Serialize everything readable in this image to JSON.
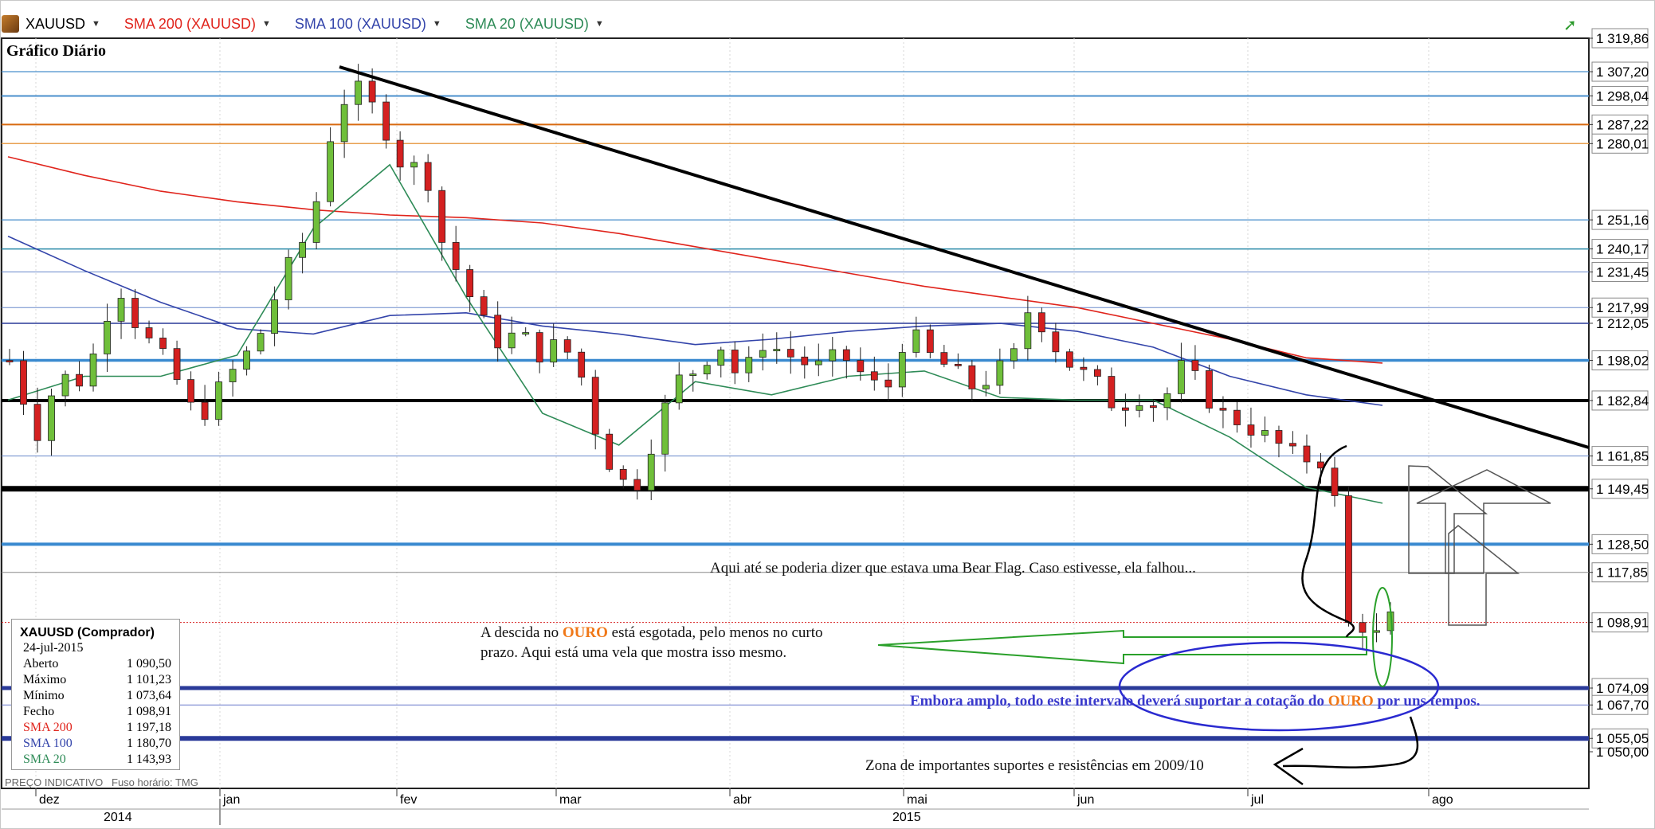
{
  "toolbar": {
    "symbol": "XAUUSD",
    "sma200_label": "SMA 200 (XAUUSD)",
    "sma100_label": "SMA 100 (XAUUSD)",
    "sma20_label": "SMA 20 (XAUUSD)"
  },
  "chart_title": "Gráfico Diário",
  "footer": {
    "left_note": "PREÇO INDICATIVO",
    "timezone_note": "Fuso horário: TMG"
  },
  "ohlc_panel": {
    "title": "XAUUSD (Comprador)",
    "date": "24-jul-2015",
    "rows": [
      {
        "label": "Aberto",
        "value": "1 090,50"
      },
      {
        "label": "Máximo",
        "value": "1 101,23"
      },
      {
        "label": "Mínimo",
        "value": "1 073,64"
      },
      {
        "label": "Fecho",
        "value": "1 098,91"
      },
      {
        "label": "SMA 200",
        "value": "1 197,18"
      },
      {
        "label": "SMA 100",
        "value": "1 180,70"
      },
      {
        "label": "SMA 20",
        "value": "1 143,93"
      }
    ]
  },
  "annotations": {
    "bear_flag": "Aqui até se poderia dizer que estava uma Bear Flag. Caso estivesse, ela falhou...",
    "descida_1": "A descida no ",
    "descida_ouro": "OURO",
    "descida_2": " está esgotada, pelo menos no curto",
    "descida_line2": "prazo. Aqui está uma vela que mostra isso mesmo.",
    "embora_1": "Embora amplo, todo este intervalo  deverá suportar a cotação do ",
    "embora_ouro": "OURO",
    "embora_2": " por uns tempos.",
    "zona": "Zona de importantes suportes e resistências em 2009/10"
  },
  "colors": {
    "up": "#6fbf3a",
    "down": "#d42020",
    "sma200": "#e0241c",
    "sma100": "#3344aa",
    "sma20": "#2e8b57",
    "accent_orange": "#f07818",
    "annot_blue": "#3a3acc"
  },
  "chart_data": {
    "type": "candlestick",
    "title": "Gráfico Diário",
    "symbol": "XAUUSD",
    "y_tick_labels": [
      "1 319,86",
      "1 307,20",
      "1 298,04",
      "1 287,22",
      "1 280,01",
      "1 251,16",
      "1 240,17",
      "1 231,45",
      "1 217,99",
      "1 212,05",
      "1 198,02",
      "1 182,84",
      "1 161,85",
      "1 149,45",
      "1 128,50",
      "1 117,85",
      "1 098,91",
      "1 074,09",
      "1 067,70",
      "1 055,05",
      "1 050,00"
    ],
    "horizontal_levels": [
      1307.2,
      1298.04,
      1287.22,
      1280.01,
      1251.16,
      1240.17,
      1231.45,
      1217.99,
      1212.05,
      1198.02,
      1182.84,
      1161.85,
      1149.45,
      1128.5,
      1117.85,
      1098.91,
      1074.09,
      1067.7,
      1055.05
    ],
    "x_tick_labels": [
      "dez",
      "jan",
      "fev",
      "mar",
      "abr",
      "mai",
      "jun",
      "jul",
      "ago"
    ],
    "year_labels": [
      "2014",
      "2015"
    ],
    "ylim": [
      1041,
      1325
    ],
    "series": [
      {
        "name": "SMA 200 (XAUUSD)",
        "values": [
          1275,
          1268,
          1262,
          1258,
          1255,
          1253,
          1252,
          1250,
          1246,
          1241,
          1236,
          1231,
          1226,
          1222,
          1218,
          1212,
          1206,
          1199,
          1197
        ]
      },
      {
        "name": "SMA 100 (XAUUSD)",
        "values": [
          1245,
          1232,
          1220,
          1210,
          1208,
          1215,
          1216,
          1211,
          1208,
          1204,
          1206,
          1209,
          1211,
          1212,
          1209,
          1203,
          1192,
          1185,
          1181
        ]
      },
      {
        "name": "SMA 20 (XAUUSD)",
        "values": [
          1183,
          1192,
          1192,
          1200,
          1248,
          1272,
          1222,
          1178,
          1166,
          1190,
          1185,
          1192,
          1194,
          1184,
          1183,
          1183,
          1169,
          1150,
          1144
        ]
      }
    ]
  }
}
